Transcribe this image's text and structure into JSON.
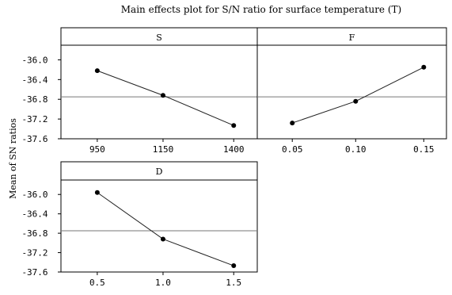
{
  "chart_data": {
    "type": "line",
    "title": "Main effects plot for S/N ratio for surface temperature (T)",
    "ylabel": "Mean of SN ratios",
    "ylim": [
      -37.6,
      -35.8
    ],
    "yticks": [
      -36.0,
      -36.4,
      -36.8,
      -37.2,
      -37.6
    ],
    "ytick_labels": [
      "-36.0",
      "-36.4",
      "-36.8",
      "-37.2",
      "-37.6"
    ],
    "reference_line": -36.75,
    "panels": [
      {
        "name": "S",
        "categories": [
          "950",
          "1150",
          "1400"
        ],
        "values": [
          -36.22,
          -36.72,
          -37.33
        ]
      },
      {
        "name": "F",
        "categories": [
          "0.05",
          "0.10",
          "0.15"
        ],
        "values": [
          -37.28,
          -36.84,
          -36.15
        ]
      },
      {
        "name": "D",
        "categories": [
          "0.5",
          "1.0",
          "1.5"
        ],
        "values": [
          -35.96,
          -36.92,
          -37.47
        ]
      }
    ]
  },
  "colors": {
    "line": "#222222",
    "marker": "#000000",
    "reference": "#777777"
  }
}
